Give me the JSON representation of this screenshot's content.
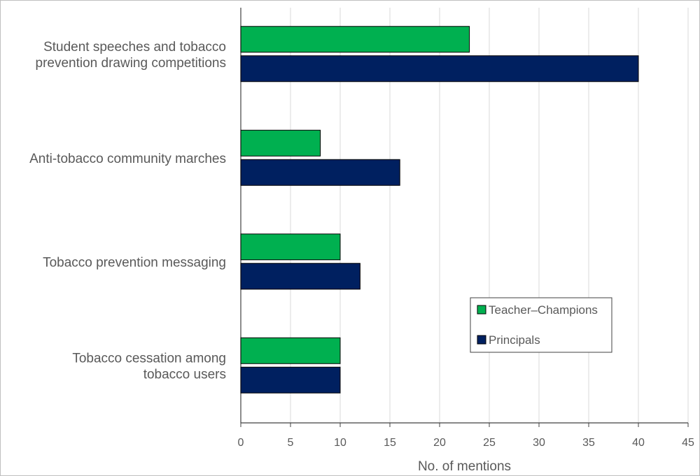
{
  "chart_data": {
    "type": "bar",
    "orientation": "horizontal",
    "categories": [
      [
        "Student speeches and tobacco",
        "prevention drawing competitions"
      ],
      [
        "Anti-tobacco community marches"
      ],
      [
        "Tobacco prevention messaging"
      ],
      [
        "Tobacco cessation among",
        "tobacco users"
      ]
    ],
    "series": [
      {
        "name": "Teacher–Champions",
        "color": "#00b050",
        "values": [
          23,
          8,
          10,
          10
        ]
      },
      {
        "name": "Principals",
        "color": "#002060",
        "values": [
          40,
          16,
          12,
          10
        ]
      }
    ],
    "xlabel": "No. of mentions",
    "ylabel": "",
    "xlim": [
      0,
      45
    ],
    "xticks": [
      0,
      5,
      10,
      15,
      20,
      25,
      30,
      35,
      40,
      45
    ],
    "grid": "vertical",
    "legend": "lower-right"
  }
}
